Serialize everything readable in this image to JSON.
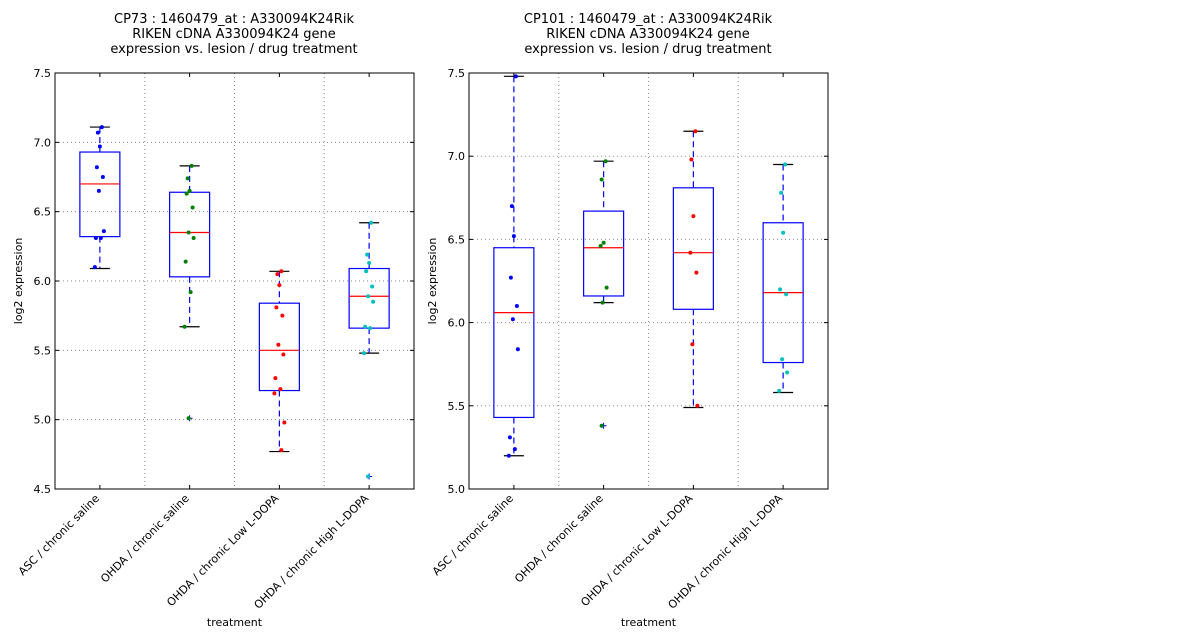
{
  "chart_data": [
    {
      "type": "box",
      "title_lines": [
        "CP73 : 1460479_at : A330094K24Rik",
        "RIKEN cDNA A330094K24 gene",
        "expression vs. lesion / drug treatment"
      ],
      "xlabel": "treatment",
      "ylabel": "log2 expression",
      "ylim": [
        4.5,
        7.5
      ],
      "yticks": [
        "4.5",
        "5.0",
        "5.5",
        "6.0",
        "6.5",
        "7.0",
        "7.5"
      ],
      "ytick_values": [
        4.5,
        5.0,
        5.5,
        6.0,
        6.5,
        7.0,
        7.5
      ],
      "grid": true,
      "categories": [
        "ASC / chronic saline",
        "OHDA / chronic saline",
        "OHDA / chronic Low L-DOPA",
        "OHDA / chronic High L-DOPA"
      ],
      "point_colors": [
        "#0000ff",
        "#008000",
        "#ff0000",
        "#00bfbf"
      ],
      "boxes": [
        {
          "whisker_low": 6.09,
          "q1": 6.32,
          "median": 6.7,
          "q3": 6.93,
          "whisker_high": 7.11,
          "outliers": [],
          "points": [
            7.11,
            7.07,
            6.97,
            6.82,
            6.75,
            6.65,
            6.36,
            6.31,
            6.31,
            6.1
          ]
        },
        {
          "whisker_low": 5.67,
          "q1": 6.03,
          "median": 6.35,
          "q3": 6.64,
          "whisker_high": 6.83,
          "outliers": [
            5.01
          ],
          "points": [
            6.83,
            6.74,
            6.65,
            6.63,
            6.53,
            6.35,
            6.31,
            6.14,
            5.92,
            5.67,
            5.01
          ]
        },
        {
          "whisker_low": 4.77,
          "q1": 5.21,
          "median": 5.5,
          "q3": 5.84,
          "whisker_high": 6.07,
          "outliers": [],
          "points": [
            6.07,
            6.05,
            5.97,
            5.81,
            5.75,
            5.54,
            5.47,
            5.3,
            5.22,
            5.19,
            4.98,
            4.78
          ]
        },
        {
          "whisker_low": 5.48,
          "q1": 5.66,
          "median": 5.89,
          "q3": 6.09,
          "whisker_high": 6.42,
          "outliers": [
            4.59
          ],
          "points": [
            6.42,
            6.19,
            6.13,
            6.07,
            5.96,
            5.89,
            5.85,
            5.67,
            5.66,
            5.48,
            4.59
          ]
        }
      ]
    },
    {
      "type": "box",
      "title_lines": [
        "CP101 : 1460479_at : A330094K24Rik",
        "RIKEN cDNA A330094K24 gene",
        "expression vs. lesion / drug treatment"
      ],
      "xlabel": "treatment",
      "ylabel": "log2 expression",
      "ylim": [
        5.0,
        7.5
      ],
      "yticks": [
        "5.0",
        "5.5",
        "6.0",
        "6.5",
        "7.0",
        "7.5"
      ],
      "ytick_values": [
        5.0,
        5.5,
        6.0,
        6.5,
        7.0,
        7.5
      ],
      "grid": true,
      "categories": [
        "ASC / chronic saline",
        "OHDA / chronic saline",
        "OHDA / chronic Low L-DOPA",
        "OHDA / chronic High L-DOPA"
      ],
      "point_colors": [
        "#0000ff",
        "#008000",
        "#ff0000",
        "#00bfbf"
      ],
      "boxes": [
        {
          "whisker_low": 5.2,
          "q1": 5.43,
          "median": 6.06,
          "q3": 6.45,
          "whisker_high": 7.48,
          "outliers": [],
          "points": [
            7.48,
            6.7,
            6.52,
            6.27,
            6.1,
            6.02,
            5.84,
            5.31,
            5.24,
            5.2
          ]
        },
        {
          "whisker_low": 6.12,
          "q1": 6.16,
          "median": 6.45,
          "q3": 6.67,
          "whisker_high": 6.97,
          "outliers": [
            5.38
          ],
          "points": [
            6.97,
            6.86,
            6.48,
            6.46,
            6.21,
            6.12,
            5.38
          ]
        },
        {
          "whisker_low": 5.49,
          "q1": 6.08,
          "median": 6.42,
          "q3": 6.81,
          "whisker_high": 7.15,
          "outliers": [],
          "points": [
            7.15,
            6.98,
            6.64,
            6.42,
            6.3,
            5.87,
            5.5
          ]
        },
        {
          "whisker_low": 5.58,
          "q1": 5.76,
          "median": 6.18,
          "q3": 6.6,
          "whisker_high": 6.95,
          "outliers": [],
          "points": [
            6.95,
            6.78,
            6.54,
            6.2,
            6.17,
            5.78,
            5.7,
            5.59
          ]
        }
      ]
    }
  ]
}
